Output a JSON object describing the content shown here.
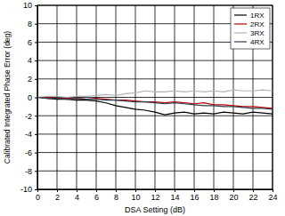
{
  "chart_data": {
    "type": "line",
    "x_label": "DSA Setting (dB)",
    "y_label": "Calibrated Integrated Phase Error (deg)",
    "x": [
      0,
      1,
      2,
      3,
      4,
      5,
      6,
      7,
      8,
      9,
      10,
      11,
      12,
      13,
      14,
      15,
      16,
      17,
      18,
      19,
      20,
      21,
      22,
      23,
      24
    ],
    "series": [
      {
        "name": "1RX",
        "color": "#000000",
        "values": [
          0,
          -0.1,
          -0.2,
          -0.2,
          -0.3,
          -0.3,
          -0.4,
          -0.6,
          -0.9,
          -1.1,
          -1.3,
          -1.4,
          -1.6,
          -1.9,
          -1.7,
          -1.6,
          -1.8,
          -1.7,
          -1.8,
          -1.6,
          -1.7,
          -1.8,
          -1.6,
          -1.7,
          -1.8
        ]
      },
      {
        "name": "2RX",
        "color": "#c00000",
        "values": [
          0,
          0,
          -0.1,
          -0.1,
          -0.1,
          -0.2,
          -0.1,
          -0.2,
          -0.3,
          -0.3,
          -0.4,
          -0.5,
          -0.5,
          -0.6,
          -0.5,
          -0.6,
          -0.7,
          -0.6,
          -0.8,
          -0.8,
          -0.9,
          -1.0,
          -1.0,
          -1.1,
          -1.2
        ]
      },
      {
        "name": "3RX",
        "color": "#b4b4b4",
        "values": [
          0,
          0.1,
          0.1,
          0.0,
          0.1,
          0.1,
          0.2,
          0.3,
          0.2,
          0.4,
          0.5,
          0.7,
          0.6,
          0.6,
          0.7,
          0.6,
          0.7,
          0.6,
          0.7,
          0.6,
          0.8,
          0.7,
          0.7,
          0.8,
          0.7
        ]
      },
      {
        "name": "4RX",
        "color": "#2f3f4f",
        "values": [
          0,
          -0.1,
          -0.1,
          -0.2,
          -0.1,
          -0.2,
          -0.2,
          -0.3,
          -0.3,
          -0.4,
          -0.5,
          -0.5,
          -0.6,
          -0.7,
          -0.6,
          -0.7,
          -0.8,
          -0.9,
          -0.9,
          -1.0,
          -1.0,
          -1.1,
          -1.2,
          -1.2,
          -1.3
        ]
      }
    ],
    "xlim": [
      0,
      24
    ],
    "xticks": [
      0,
      2,
      4,
      6,
      8,
      10,
      12,
      14,
      16,
      18,
      20,
      22,
      24
    ],
    "ylim": [
      -10,
      10
    ],
    "yticks": [
      -10,
      -8,
      -6,
      -4,
      -2,
      0,
      2,
      4,
      6,
      8,
      10
    ],
    "grid": true,
    "legend": "top-right"
  }
}
